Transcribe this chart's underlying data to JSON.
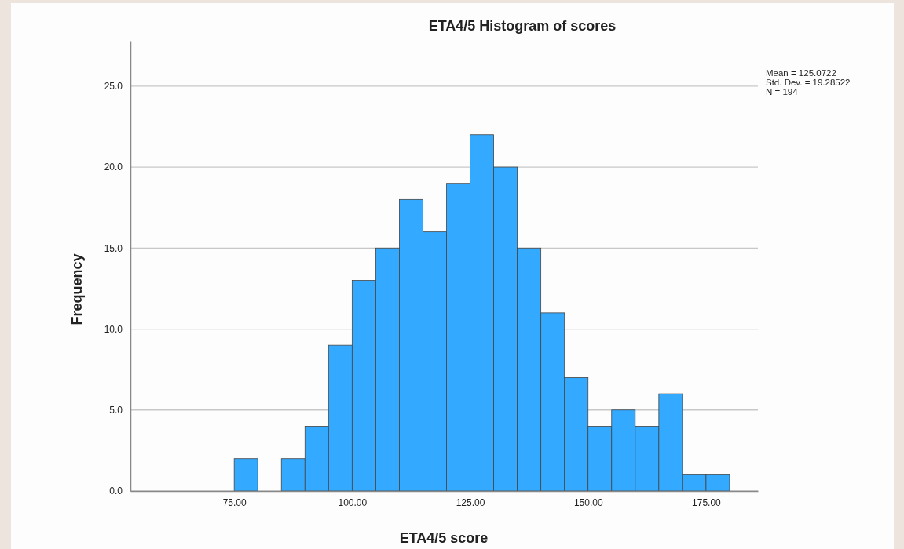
{
  "chart_data": {
    "type": "histogram",
    "title": "ETA4/5 Histogram of scores",
    "xlabel": "ETA4/5 score",
    "ylabel": "Frequency",
    "bins": [
      75,
      80,
      85,
      90,
      95,
      100,
      105,
      110,
      115,
      120,
      125,
      130,
      135,
      140,
      145,
      150,
      155,
      160,
      165,
      170,
      175,
      180
    ],
    "values": [
      2,
      0,
      2,
      4,
      9,
      13,
      15,
      18,
      16,
      19,
      22,
      20,
      15,
      11,
      7,
      4,
      5,
      4,
      6,
      1,
      1
    ],
    "color": "#33aaff",
    "xlim": [
      53,
      186
    ],
    "xticks": [
      {
        "value": 75,
        "label": "75.00"
      },
      {
        "value": 100,
        "label": "100.00"
      },
      {
        "value": 125,
        "label": "125.00"
      },
      {
        "value": 150,
        "label": "150.00"
      },
      {
        "value": 175,
        "label": "175.00"
      }
    ],
    "ylim": [
      0,
      27.8
    ],
    "yticks": [
      {
        "value": 0,
        "label": "0.0"
      },
      {
        "value": 5,
        "label": "5.0"
      },
      {
        "value": 10,
        "label": "10.0"
      },
      {
        "value": 15,
        "label": "15.0"
      },
      {
        "value": 20,
        "label": "20.0"
      },
      {
        "value": 25,
        "label": "25.0"
      }
    ],
    "grid": "y",
    "annotations": [
      "Mean = 125.0722",
      "Std. Dev. = 19.28522",
      "N = 194"
    ]
  }
}
